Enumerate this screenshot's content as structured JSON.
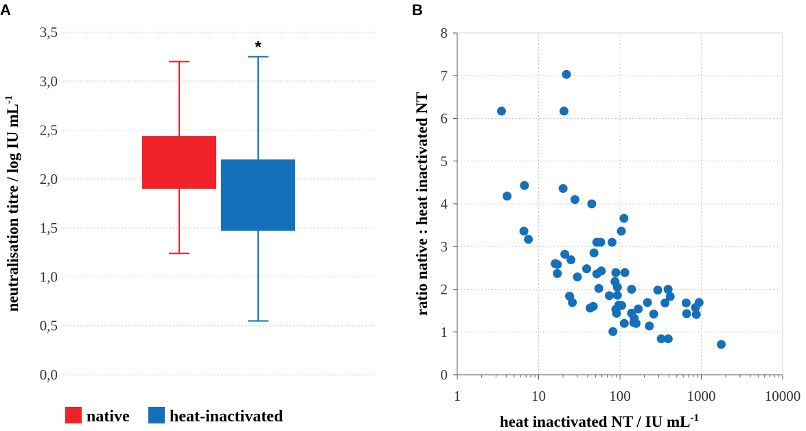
{
  "panel_a_letter": "A",
  "panel_b_letter": "B",
  "significance_marker": "*",
  "legend": [
    {
      "label": "native",
      "color": "#ee2228"
    },
    {
      "label": "heat-inactivated",
      "color": "#1570bb"
    }
  ],
  "chart_data": [
    {
      "type": "box",
      "panel": "A",
      "ylabel_main": "neutralisation titre / log IU mL",
      "ylabel_sup": "-1",
      "ylim": [
        0,
        3.5
      ],
      "yticks": [
        {
          "v": 0,
          "label": "0,0"
        },
        {
          "v": 0.5,
          "label": "0,5"
        },
        {
          "v": 1.0,
          "label": "1,0"
        },
        {
          "v": 1.5,
          "label": "1,5"
        },
        {
          "v": 2.0,
          "label": "2,0"
        },
        {
          "v": 2.5,
          "label": "2,5"
        },
        {
          "v": 3.0,
          "label": "3,0"
        },
        {
          "v": 3.5,
          "label": "3,5"
        }
      ],
      "series": [
        {
          "name": "native",
          "color": "#ee2228",
          "whisker_low": 1.24,
          "q1": 1.9,
          "q3": 2.44,
          "whisker_high": 3.2
        },
        {
          "name": "heat-inactivated",
          "color": "#1570bb",
          "whisker_low": 0.55,
          "q1": 1.47,
          "q3": 2.2,
          "whisker_high": 3.25
        }
      ]
    },
    {
      "type": "scatter",
      "panel": "B",
      "xscale": "log",
      "xlim": [
        1,
        10000
      ],
      "ylim": [
        0,
        8
      ],
      "xticks": [
        {
          "v": 1,
          "label": "1"
        },
        {
          "v": 10,
          "label": "10"
        },
        {
          "v": 100,
          "label": "100"
        },
        {
          "v": 1000,
          "label": "1000"
        },
        {
          "v": 10000,
          "label": "10000"
        }
      ],
      "yticks": [
        {
          "v": 0,
          "label": "0"
        },
        {
          "v": 1,
          "label": "1"
        },
        {
          "v": 2,
          "label": "2"
        },
        {
          "v": 3,
          "label": "3"
        },
        {
          "v": 4,
          "label": "4"
        },
        {
          "v": 5,
          "label": "5"
        },
        {
          "v": 6,
          "label": "6"
        },
        {
          "v": 7,
          "label": "7"
        },
        {
          "v": 8,
          "label": "8"
        }
      ],
      "xlabel_main": "heat inactivated NT / IU mL",
      "xlabel_sup": "-1",
      "ylabel": "ratio native : heat inactivated NT",
      "color": "#1570bb",
      "points": [
        [
          3.5,
          6.17
        ],
        [
          22,
          7.03
        ],
        [
          20.5,
          6.17
        ],
        [
          6.7,
          4.43
        ],
        [
          4.1,
          4.18
        ],
        [
          20,
          4.36
        ],
        [
          28,
          4.1
        ],
        [
          45,
          4.0
        ],
        [
          6.6,
          3.36
        ],
        [
          7.5,
          3.17
        ],
        [
          112,
          3.66
        ],
        [
          52,
          3.1
        ],
        [
          58,
          3.1
        ],
        [
          80,
          3.1
        ],
        [
          104,
          3.36
        ],
        [
          48,
          2.85
        ],
        [
          21,
          2.82
        ],
        [
          25,
          2.69
        ],
        [
          16,
          2.6
        ],
        [
          17,
          2.58
        ],
        [
          17,
          2.37
        ],
        [
          39,
          2.48
        ],
        [
          30,
          2.29
        ],
        [
          52,
          2.36
        ],
        [
          59,
          2.43
        ],
        [
          89,
          2.39
        ],
        [
          115,
          2.39
        ],
        [
          55,
          2.02
        ],
        [
          87,
          2.18
        ],
        [
          93,
          2.05
        ],
        [
          74,
          1.85
        ],
        [
          93,
          1.86
        ],
        [
          139,
          2.0
        ],
        [
          24,
          1.84
        ],
        [
          26,
          1.69
        ],
        [
          43,
          1.56
        ],
        [
          47,
          1.6
        ],
        [
          97,
          1.63
        ],
        [
          105,
          1.62
        ],
        [
          89,
          1.53
        ],
        [
          91,
          1.44
        ],
        [
          139,
          1.44
        ],
        [
          168,
          1.54
        ],
        [
          150,
          1.32
        ],
        [
          158,
          1.2
        ],
        [
          148,
          1.22
        ],
        [
          113,
          1.2
        ],
        [
          82,
          1.01
        ],
        [
          230,
          1.14
        ],
        [
          260,
          1.42
        ],
        [
          218,
          1.69
        ],
        [
          292,
          1.98
        ],
        [
          358,
          1.68
        ],
        [
          391,
          2.0
        ],
        [
          415,
          1.83
        ],
        [
          652,
          1.68
        ],
        [
          660,
          1.43
        ],
        [
          848,
          1.57
        ],
        [
          868,
          1.41
        ],
        [
          940,
          1.69
        ],
        [
          322,
          0.84
        ],
        [
          392,
          0.84
        ],
        [
          1760,
          0.71
        ]
      ]
    }
  ]
}
